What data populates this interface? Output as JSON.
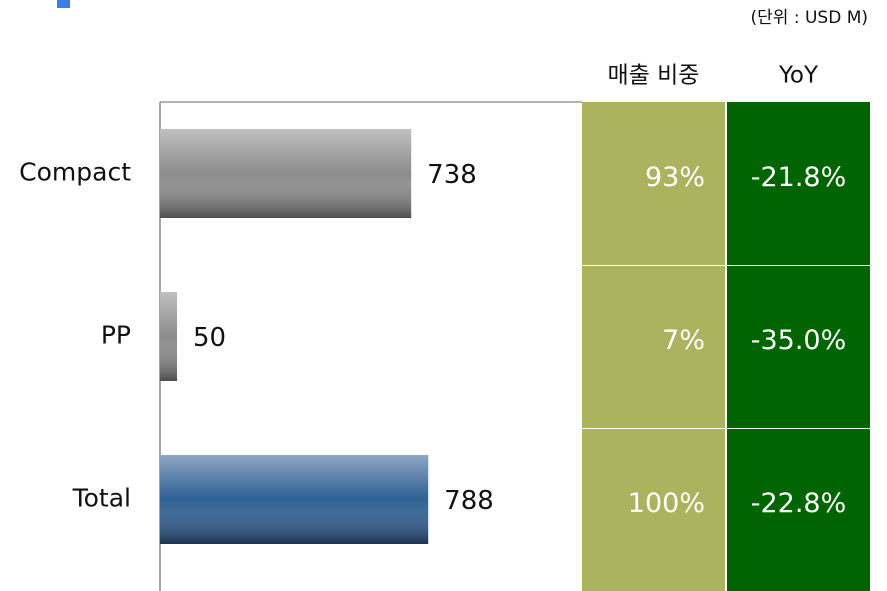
{
  "chart_data": {
    "type": "bar",
    "orientation": "horizontal",
    "unit_note": "(단위 : USD M)",
    "categories": [
      "Compact",
      "PP",
      "Total"
    ],
    "values": [
      738,
      50,
      788
    ],
    "colors": [
      "#8c8c8c",
      "#8c8c8c",
      "#2f5f94"
    ],
    "xlim": [
      0,
      1240
    ],
    "columns": [
      "매출 비중",
      "YoY"
    ],
    "share": [
      "93%",
      "7%",
      "100%"
    ],
    "yoy": [
      "-21.8%",
      "-35.0%",
      "-22.8%"
    ],
    "column_colors": [
      "#adb25e",
      "#006400"
    ]
  }
}
